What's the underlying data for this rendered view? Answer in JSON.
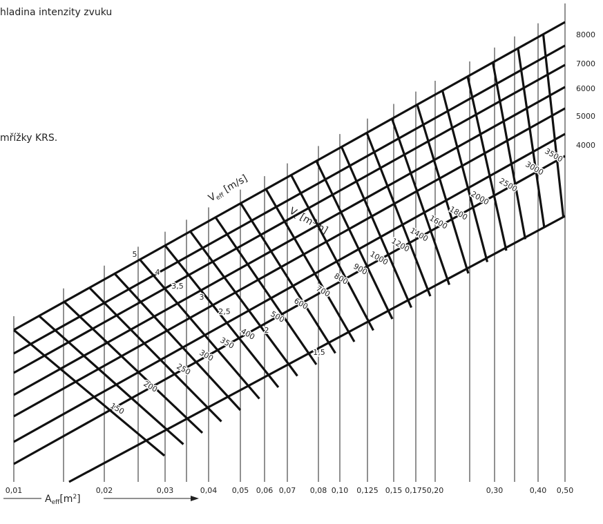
{
  "header": {
    "line1": "hladina intenzity zvuku",
    "line2": "mřížky KRS."
  },
  "x_axis": {
    "name": "A",
    "sub": "eff",
    "unit_open": "[m",
    "sup": "2",
    "unit_close": "]",
    "labels": [
      "0,01",
      "0,02",
      "0,03",
      "0,04",
      "0,05",
      "0,06",
      "0,07",
      "0,08",
      "0,10",
      "0,125",
      "0,15",
      "0,175",
      "0,20",
      "0,30",
      "0,40",
      "0,50"
    ]
  },
  "right_labels": [
    "8000",
    "7000",
    "6000",
    "5000",
    "4000"
  ],
  "veff": {
    "name": "V",
    "sub": "eff",
    "unit": " [m/s]",
    "labels": [
      "5",
      "4",
      "3,5",
      "3",
      "2,5",
      "2",
      "1,5"
    ]
  },
  "vt": {
    "name": "V",
    "sub": "t",
    "unit_open": " [m",
    "sup": "3",
    "unit_close": "/h]",
    "labels": [
      "150",
      "200",
      "250",
      "300",
      "350",
      "400",
      "500",
      "600",
      "700",
      "800",
      "900",
      "1000",
      "1200",
      "1400",
      "1600",
      "1800",
      "2000",
      "2500",
      "3000",
      "3500"
    ]
  }
}
